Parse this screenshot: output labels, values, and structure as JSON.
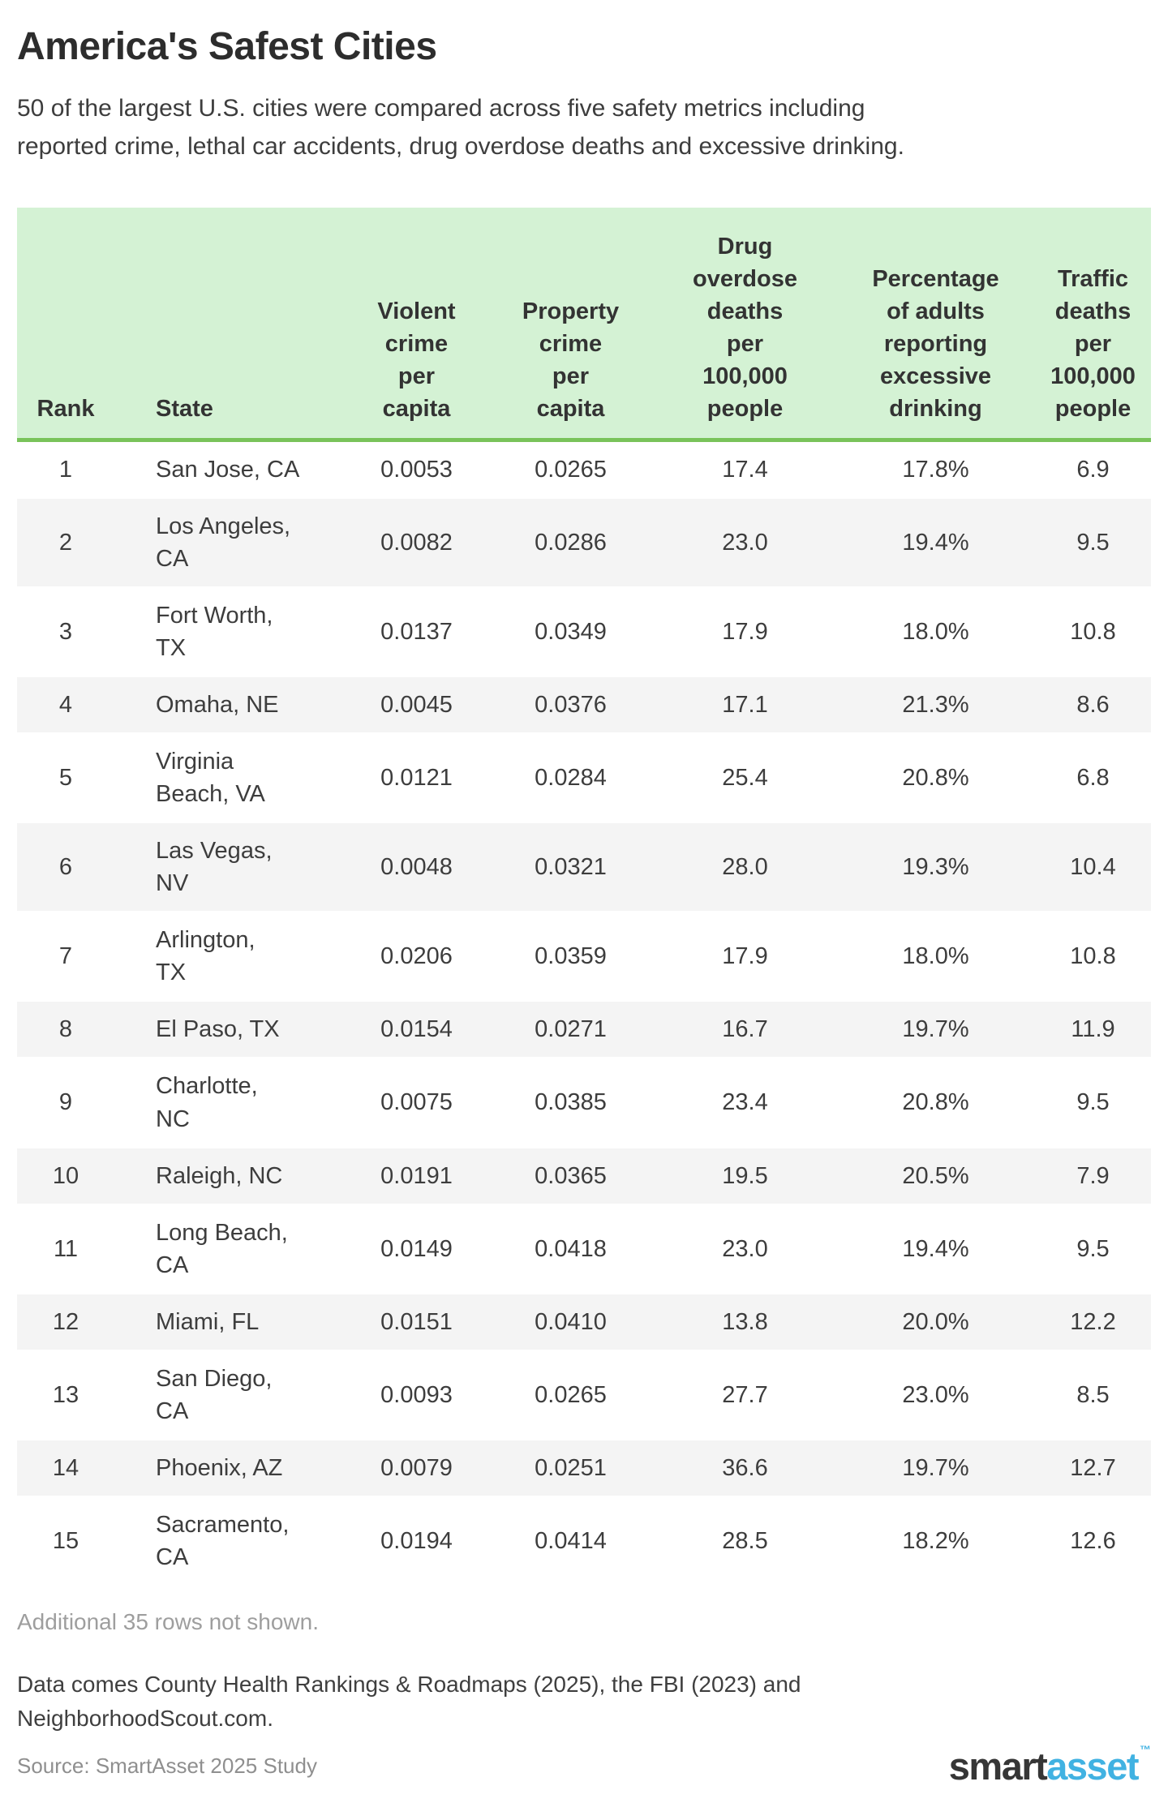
{
  "title": "America's Safest Cities",
  "subtitle": "50 of the largest U.S. cities were compared across five safety metrics including\nreported crime, lethal car accidents, drug overdose deaths and excessive drinking.",
  "chart_data": {
    "type": "table",
    "title": "America's Safest Cities",
    "columns": [
      "Rank",
      "State",
      "Violent crime per capita",
      "Property crime per capita",
      "Drug overdose deaths per 100,000 people",
      "Percentage of adults reporting excessive drinking",
      "Traffic deaths per 100,000 people"
    ],
    "rows": [
      [
        1,
        "San Jose, CA",
        0.0053,
        0.0265,
        17.4,
        "17.8%",
        6.9
      ],
      [
        2,
        "Los Angeles, CA",
        0.0082,
        0.0286,
        23.0,
        "19.4%",
        9.5
      ],
      [
        3,
        "Fort Worth, TX",
        0.0137,
        0.0349,
        17.9,
        "18.0%",
        10.8
      ],
      [
        4,
        "Omaha, NE",
        0.0045,
        0.0376,
        17.1,
        "21.3%",
        8.6
      ],
      [
        5,
        "Virginia Beach, VA",
        0.0121,
        0.0284,
        25.4,
        "20.8%",
        6.8
      ],
      [
        6,
        "Las Vegas, NV",
        0.0048,
        0.0321,
        28.0,
        "19.3%",
        10.4
      ],
      [
        7,
        "Arlington, TX",
        0.0206,
        0.0359,
        17.9,
        "18.0%",
        10.8
      ],
      [
        8,
        "El Paso, TX",
        0.0154,
        0.0271,
        16.7,
        "19.7%",
        11.9
      ],
      [
        9,
        "Charlotte, NC",
        0.0075,
        0.0385,
        23.4,
        "20.8%",
        9.5
      ],
      [
        10,
        "Raleigh, NC",
        0.0191,
        0.0365,
        19.5,
        "20.5%",
        7.9
      ],
      [
        11,
        "Long Beach, CA",
        0.0149,
        0.0418,
        23.0,
        "19.4%",
        9.5
      ],
      [
        12,
        "Miami, FL",
        0.0151,
        0.041,
        13.8,
        "20.0%",
        12.2
      ],
      [
        13,
        "San Diego, CA",
        0.0093,
        0.0265,
        27.7,
        "23.0%",
        8.5
      ],
      [
        14,
        "Phoenix, AZ",
        0.0079,
        0.0251,
        36.6,
        "19.7%",
        12.7
      ],
      [
        15,
        "Sacramento, CA",
        0.0194,
        0.0414,
        28.5,
        "18.2%",
        12.6
      ]
    ]
  },
  "table": {
    "headers": [
      "Rank",
      "State",
      "Violent\ncrime\nper\ncapita",
      "Property\ncrime\nper\ncapita",
      "Drug\noverdose\ndeaths\nper\n100,000\npeople",
      "Percentage\nof adults\nreporting\nexcessive\ndrinking",
      "Traffic\ndeaths\nper\n100,000\npeople"
    ],
    "rows": [
      {
        "rank": "1",
        "state": "San Jose, CA",
        "values": [
          "0.0053",
          "0.0265",
          "17.4",
          "17.8%",
          "6.9"
        ]
      },
      {
        "rank": "2",
        "state": "Los Angeles,\nCA",
        "values": [
          "0.0082",
          "0.0286",
          "23.0",
          "19.4%",
          "9.5"
        ]
      },
      {
        "rank": "3",
        "state": "Fort Worth,\nTX",
        "values": [
          "0.0137",
          "0.0349",
          "17.9",
          "18.0%",
          "10.8"
        ]
      },
      {
        "rank": "4",
        "state": "Omaha, NE",
        "values": [
          "0.0045",
          "0.0376",
          "17.1",
          "21.3%",
          "8.6"
        ]
      },
      {
        "rank": "5",
        "state": "Virginia\nBeach, VA",
        "values": [
          "0.0121",
          "0.0284",
          "25.4",
          "20.8%",
          "6.8"
        ]
      },
      {
        "rank": "6",
        "state": "Las Vegas,\nNV",
        "values": [
          "0.0048",
          "0.0321",
          "28.0",
          "19.3%",
          "10.4"
        ]
      },
      {
        "rank": "7",
        "state": "Arlington,\nTX",
        "values": [
          "0.0206",
          "0.0359",
          "17.9",
          "18.0%",
          "10.8"
        ]
      },
      {
        "rank": "8",
        "state": "El Paso, TX",
        "values": [
          "0.0154",
          "0.0271",
          "16.7",
          "19.7%",
          "11.9"
        ]
      },
      {
        "rank": "9",
        "state": "Charlotte,\nNC",
        "values": [
          "0.0075",
          "0.0385",
          "23.4",
          "20.8%",
          "9.5"
        ]
      },
      {
        "rank": "10",
        "state": "Raleigh, NC",
        "values": [
          "0.0191",
          "0.0365",
          "19.5",
          "20.5%",
          "7.9"
        ]
      },
      {
        "rank": "11",
        "state": "Long Beach,\nCA",
        "values": [
          "0.0149",
          "0.0418",
          "23.0",
          "19.4%",
          "9.5"
        ]
      },
      {
        "rank": "12",
        "state": "Miami, FL",
        "values": [
          "0.0151",
          "0.0410",
          "13.8",
          "20.0%",
          "12.2"
        ]
      },
      {
        "rank": "13",
        "state": "San Diego,\nCA",
        "values": [
          "0.0093",
          "0.0265",
          "27.7",
          "23.0%",
          "8.5"
        ]
      },
      {
        "rank": "14",
        "state": "Phoenix, AZ",
        "values": [
          "0.0079",
          "0.0251",
          "36.6",
          "19.7%",
          "12.7"
        ]
      },
      {
        "rank": "15",
        "state": "Sacramento,\nCA",
        "values": [
          "0.0194",
          "0.0414",
          "28.5",
          "18.2%",
          "12.6"
        ]
      }
    ]
  },
  "notes": {
    "additional_rows": "Additional 35 rows not shown.",
    "data_sources": "Data comes County Health Rankings & Roadmaps (2025), the FBI (2023) and\nNeighborhoodScout.com."
  },
  "footer": {
    "source": "Source: SmartAsset 2025 Study",
    "logo": {
      "part1": "smart",
      "part2": "asset",
      "trademark": "™"
    }
  },
  "colors": {
    "header_bg": "#d4f2d4",
    "header_border": "#79c35a",
    "row_alt": "#f4f4f4",
    "logo_blue": "#41b2e2"
  }
}
